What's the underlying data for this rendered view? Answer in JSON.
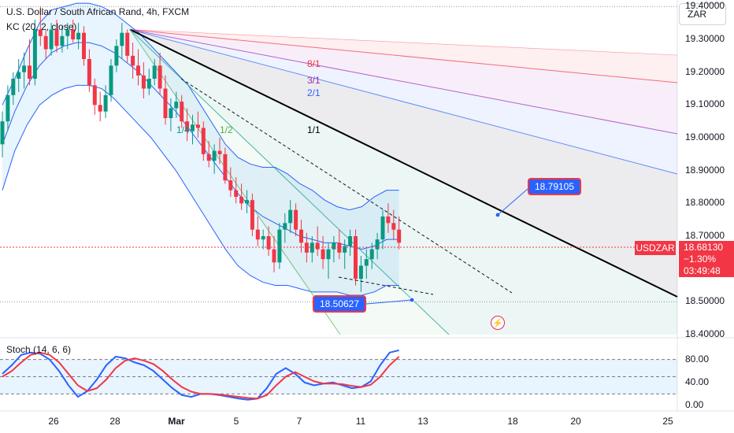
{
  "header": {
    "title": "U.S. Dollar / South African Rand, 4h, FXCM",
    "indicator": "KC (20, 2, close)",
    "currency_button": "ZAR",
    "stoch_label": "Stoch (14, 6, 6)"
  },
  "price_axis": {
    "labels": [
      "19.40000",
      "19.30000",
      "19.20000",
      "19.10000",
      "19.00000",
      "18.90000",
      "18.80000",
      "18.70000",
      "18.50000",
      "18.40000"
    ]
  },
  "time_axis": {
    "labels": [
      "26",
      "28",
      "Mar",
      "5",
      "7",
      "11",
      "13",
      "18",
      "20",
      "25"
    ]
  },
  "stoch_axis": {
    "labels": [
      "80.00",
      "40.00",
      "0.00"
    ]
  },
  "current_price": {
    "symbol": "USDZAR",
    "price": "18.68130",
    "change": "−1.30%",
    "countdown": "03:49:48"
  },
  "callouts": {
    "upper": "18.79105",
    "lower": "18.50627"
  },
  "fan_labels": [
    "8/1",
    "3/1",
    "2/1",
    "1/1",
    "1/4",
    "1/2"
  ],
  "colors": {
    "up": "#089981",
    "down": "#f23645",
    "band": "#2962ff",
    "stoch_k": "#2962ff",
    "stoch_d": "#f23645",
    "trendline": "#000000"
  },
  "chart_data": [
    {
      "type": "candlestick",
      "title": "U.S. Dollar / South African Rand, 4h, FXCM",
      "ylim": [
        18.4,
        19.42
      ],
      "anchor_price": 19.33,
      "candles": [
        [
          18.98,
          19.08,
          18.94,
          19.05
        ],
        [
          19.05,
          19.16,
          19.02,
          19.13
        ],
        [
          19.13,
          19.2,
          19.1,
          19.18
        ],
        [
          19.18,
          19.24,
          19.14,
          19.2
        ],
        [
          19.2,
          19.26,
          19.15,
          19.22
        ],
        [
          19.22,
          19.3,
          19.16,
          19.18
        ],
        [
          19.18,
          19.36,
          19.16,
          19.33
        ],
        [
          19.33,
          19.4,
          19.28,
          19.31
        ],
        [
          19.31,
          19.33,
          19.24,
          19.27
        ],
        [
          19.27,
          19.35,
          19.25,
          19.33
        ],
        [
          19.33,
          19.36,
          19.26,
          19.28
        ],
        [
          19.28,
          19.34,
          19.26,
          19.31
        ],
        [
          19.31,
          19.35,
          19.27,
          19.33
        ],
        [
          19.33,
          19.36,
          19.29,
          19.3
        ],
        [
          19.3,
          19.35,
          19.27,
          19.32
        ],
        [
          19.32,
          19.34,
          19.22,
          19.24
        ],
        [
          19.24,
          19.27,
          19.14,
          19.16
        ],
        [
          19.16,
          19.18,
          19.07,
          19.1
        ],
        [
          19.1,
          19.14,
          19.05,
          19.08
        ],
        [
          19.08,
          19.16,
          19.06,
          19.13
        ],
        [
          19.13,
          19.24,
          19.11,
          19.22
        ],
        [
          19.22,
          19.3,
          19.2,
          19.28
        ],
        [
          19.28,
          19.35,
          19.24,
          19.32
        ],
        [
          19.32,
          19.33,
          19.23,
          19.25
        ],
        [
          19.25,
          19.29,
          19.18,
          19.22
        ],
        [
          19.22,
          19.27,
          19.16,
          19.19
        ],
        [
          19.19,
          19.23,
          19.12,
          19.15
        ],
        [
          19.15,
          19.21,
          19.13,
          19.18
        ],
        [
          19.18,
          19.24,
          19.16,
          19.22
        ],
        [
          19.22,
          19.26,
          19.13,
          19.15
        ],
        [
          19.15,
          19.19,
          19.04,
          19.06
        ],
        [
          19.06,
          19.12,
          19.02,
          19.09
        ],
        [
          19.09,
          19.14,
          19.06,
          19.11
        ],
        [
          19.11,
          19.13,
          19.03,
          19.05
        ],
        [
          19.05,
          19.09,
          18.99,
          19.02
        ],
        [
          19.02,
          19.07,
          18.98,
          19.04
        ],
        [
          19.04,
          19.08,
          19.0,
          19.03
        ],
        [
          19.03,
          19.05,
          18.93,
          18.95
        ],
        [
          18.95,
          18.99,
          18.91,
          18.93
        ],
        [
          18.93,
          18.98,
          18.89,
          18.96
        ],
        [
          18.96,
          19.0,
          18.92,
          18.95
        ],
        [
          18.95,
          18.97,
          18.86,
          18.87
        ],
        [
          18.87,
          18.91,
          18.82,
          18.84
        ],
        [
          18.84,
          18.88,
          18.8,
          18.82
        ],
        [
          18.82,
          18.86,
          18.78,
          18.8
        ],
        [
          18.8,
          18.84,
          18.77,
          18.81
        ],
        [
          18.81,
          18.83,
          18.7,
          18.72
        ],
        [
          18.72,
          18.76,
          18.67,
          18.69
        ],
        [
          18.69,
          18.72,
          18.66,
          18.7
        ],
        [
          18.7,
          18.73,
          18.64,
          18.66
        ],
        [
          18.66,
          18.7,
          18.59,
          18.62
        ],
        [
          18.62,
          18.74,
          18.6,
          18.72
        ],
        [
          18.72,
          18.77,
          18.68,
          18.74
        ],
        [
          18.74,
          18.81,
          18.71,
          18.78
        ],
        [
          18.78,
          18.8,
          18.7,
          18.72
        ],
        [
          18.72,
          18.75,
          18.65,
          18.68
        ],
        [
          18.68,
          18.71,
          18.62,
          18.65
        ],
        [
          18.65,
          18.7,
          18.62,
          18.68
        ],
        [
          18.68,
          18.73,
          18.64,
          18.66
        ],
        [
          18.66,
          18.7,
          18.6,
          18.63
        ],
        [
          18.63,
          18.68,
          18.57,
          18.66
        ],
        [
          18.66,
          18.7,
          18.62,
          18.68
        ],
        [
          18.68,
          18.72,
          18.63,
          18.65
        ],
        [
          18.65,
          18.69,
          18.6,
          18.67
        ],
        [
          18.67,
          18.72,
          18.64,
          18.7
        ],
        [
          18.7,
          18.72,
          18.55,
          18.57
        ],
        [
          18.57,
          18.64,
          18.53,
          18.61
        ],
        [
          18.61,
          18.66,
          18.57,
          18.63
        ],
        [
          18.63,
          18.68,
          18.6,
          18.66
        ],
        [
          18.66,
          18.71,
          18.63,
          18.69
        ],
        [
          18.69,
          18.78,
          18.66,
          18.76
        ],
        [
          18.76,
          18.8,
          18.71,
          18.74
        ],
        [
          18.74,
          18.78,
          18.69,
          18.72
        ],
        [
          18.72,
          18.76,
          18.66,
          18.68
        ]
      ],
      "kc_upper": [
        19.1,
        19.18,
        19.27,
        19.35,
        19.39,
        19.4,
        19.41,
        19.41,
        19.4,
        19.38,
        19.35,
        19.32,
        19.28,
        19.24,
        19.2,
        19.16,
        19.1,
        19.04,
        18.98,
        18.94,
        18.92,
        18.91,
        18.91,
        18.89,
        18.86,
        18.84,
        18.81,
        18.79,
        18.78,
        18.79,
        18.82,
        18.84,
        18.84
      ],
      "kc_middle": [
        18.98,
        19.08,
        19.16,
        19.22,
        19.26,
        19.28,
        19.29,
        19.29,
        19.28,
        19.26,
        19.23,
        19.2,
        19.16,
        19.12,
        19.08,
        19.03,
        18.98,
        18.93,
        18.88,
        18.83,
        18.79,
        18.76,
        18.74,
        18.72,
        18.7,
        18.69,
        18.68,
        18.68,
        18.67,
        18.66,
        18.67,
        18.69,
        18.69
      ],
      "kc_lower": [
        18.84,
        18.96,
        19.04,
        19.1,
        19.13,
        19.15,
        19.16,
        19.16,
        19.15,
        19.12,
        19.08,
        19.04,
        19.0,
        18.95,
        18.9,
        18.84,
        18.78,
        18.72,
        18.66,
        18.61,
        18.58,
        18.56,
        18.55,
        18.55,
        18.54,
        18.53,
        18.53,
        18.53,
        18.52,
        18.52,
        18.53,
        18.55,
        18.55
      ]
    },
    {
      "type": "line",
      "title": "Stoch (14, 6, 6)",
      "ylim": [
        0,
        100
      ],
      "series": [
        {
          "values": [
            55,
            70,
            88,
            92,
            90,
            80,
            60,
            35,
            15,
            25,
            45,
            70,
            85,
            82,
            75,
            70,
            60,
            45,
            30,
            18,
            15,
            20,
            20,
            18,
            15,
            12,
            10,
            12,
            30,
            55,
            65,
            55,
            40,
            35,
            38,
            40,
            35,
            30,
            32,
            42,
            70,
            92,
            96
          ]
        },
        {
          "values": [
            50,
            60,
            75,
            88,
            92,
            88,
            75,
            55,
            35,
            25,
            30,
            45,
            65,
            78,
            82,
            78,
            72,
            60,
            45,
            32,
            24,
            20,
            20,
            19,
            17,
            15,
            13,
            12,
            18,
            35,
            50,
            58,
            50,
            42,
            38,
            38,
            37,
            34,
            32,
            36,
            50,
            70,
            85
          ]
        }
      ]
    }
  ]
}
